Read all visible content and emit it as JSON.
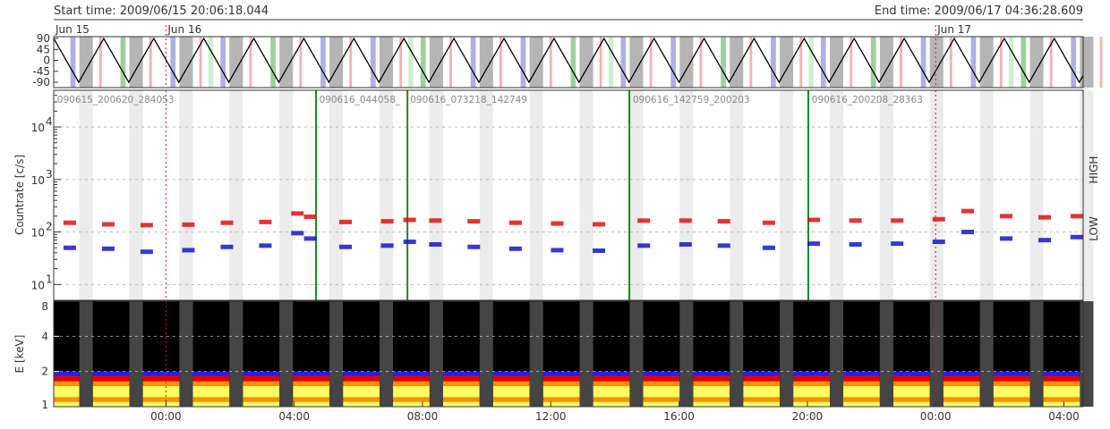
{
  "header": {
    "start_time": "Start time: 2009/06/15 20:06:18.044",
    "end_time": "End time: 2009/06/17 04:36:28.609"
  },
  "chart_data": [
    {
      "type": "line",
      "panel": "pitch-angle",
      "x_range_hours": [
        -3.5,
        28.6
      ],
      "ylim": [
        -90,
        90
      ],
      "yticks": [
        "90",
        "45",
        "0",
        "-45",
        "-90"
      ],
      "ytick_values": [
        90,
        45,
        0,
        -45,
        -90
      ],
      "day_labels": [
        {
          "label": "Jun 15",
          "hour": -3.5
        },
        {
          "label": "Jun 16",
          "hour": 0
        },
        {
          "label": "Jun 17",
          "hour": 24
        }
      ],
      "period_hours": 1.56,
      "color": "#000000",
      "background_colors": {
        "grey": "#b5b5b5",
        "blue": "#b0b0e6",
        "green": "#9ed09e",
        "red": "#f2b3b3",
        "lightgreen": "#cfeecf"
      }
    },
    {
      "type": "scatter",
      "panel": "countrate",
      "ylabel": "Countrate [c/s]",
      "yscale": "log",
      "ylim": [
        5,
        50000
      ],
      "yticks": [
        {
          "base": "10",
          "exp": "1",
          "value": 10
        },
        {
          "base": "10",
          "exp": "2",
          "value": 100
        },
        {
          "base": "10",
          "exp": "3",
          "value": 1000
        },
        {
          "base": "10",
          "exp": "4",
          "value": 10000
        }
      ],
      "legend": [
        "LOW",
        "HIGH"
      ],
      "legend_position": "right",
      "grid": true,
      "segment_labels": [
        {
          "label": "090615_200620_284053",
          "hour": -3.45
        },
        {
          "label": "090616_044058_",
          "hour": 4.72
        },
        {
          "label": "090616_073218_142749",
          "hour": 7.56
        },
        {
          "label": "090616_142759_200203",
          "hour": 14.5
        },
        {
          "label": "090616_200208_28363",
          "hour": 20.08
        }
      ],
      "boundaries_hours": [
        4.68,
        7.53,
        14.45,
        20.03
      ],
      "series": [
        {
          "name": "LOW",
          "color": "#e01010",
          "points": [
            [
              -3.0,
              150
            ],
            [
              -1.8,
              140
            ],
            [
              -0.6,
              135
            ],
            [
              0.7,
              138
            ],
            [
              1.9,
              150
            ],
            [
              3.1,
              155
            ],
            [
              4.1,
              225
            ],
            [
              4.5,
              195
            ],
            [
              5.6,
              155
            ],
            [
              6.9,
              160
            ],
            [
              7.6,
              170
            ],
            [
              8.4,
              165
            ],
            [
              9.6,
              160
            ],
            [
              10.9,
              150
            ],
            [
              12.2,
              145
            ],
            [
              13.5,
              140
            ],
            [
              14.9,
              165
            ],
            [
              16.2,
              165
            ],
            [
              17.4,
              160
            ],
            [
              18.8,
              150
            ],
            [
              20.2,
              170
            ],
            [
              21.5,
              165
            ],
            [
              22.8,
              165
            ],
            [
              24.1,
              175
            ],
            [
              25.0,
              250
            ],
            [
              26.2,
              200
            ],
            [
              27.4,
              190
            ],
            [
              28.4,
              200
            ]
          ]
        },
        {
          "name": "HIGH",
          "color": "#1515cc",
          "points": [
            [
              -3.0,
              50
            ],
            [
              -1.8,
              48
            ],
            [
              -0.6,
              42
            ],
            [
              0.7,
              45
            ],
            [
              1.9,
              52
            ],
            [
              3.1,
              55
            ],
            [
              4.1,
              95
            ],
            [
              4.5,
              75
            ],
            [
              5.6,
              52
            ],
            [
              6.9,
              55
            ],
            [
              7.6,
              65
            ],
            [
              8.4,
              58
            ],
            [
              9.6,
              52
            ],
            [
              10.9,
              48
            ],
            [
              12.2,
              45
            ],
            [
              13.5,
              44
            ],
            [
              14.9,
              55
            ],
            [
              16.2,
              58
            ],
            [
              17.4,
              55
            ],
            [
              18.8,
              50
            ],
            [
              20.2,
              60
            ],
            [
              21.5,
              58
            ],
            [
              22.8,
              60
            ],
            [
              24.1,
              65
            ],
            [
              25.0,
              100
            ],
            [
              26.2,
              75
            ],
            [
              27.4,
              70
            ],
            [
              28.4,
              80
            ]
          ]
        }
      ]
    },
    {
      "type": "heatmap",
      "panel": "energy-spectrogram",
      "ylabel": "E [keV]",
      "yscale": "log",
      "ylim": [
        1,
        8
      ],
      "yticks": [
        "1",
        "2",
        "4",
        "8"
      ],
      "ytick_values": [
        1,
        2,
        4,
        8
      ],
      "xticks": [
        "00:00",
        "04:00",
        "08:00",
        "12:00",
        "16:00",
        "20:00",
        "00:00",
        "04:00"
      ],
      "xtick_hours": [
        0,
        4,
        8,
        12,
        16,
        20,
        24,
        28
      ],
      "colors": {
        "background": "#000000",
        "gap": "#454545",
        "low": "#ffff60",
        "mid": "#ff9000",
        "high": "#e00000",
        "top": "#2020ff"
      }
    }
  ]
}
